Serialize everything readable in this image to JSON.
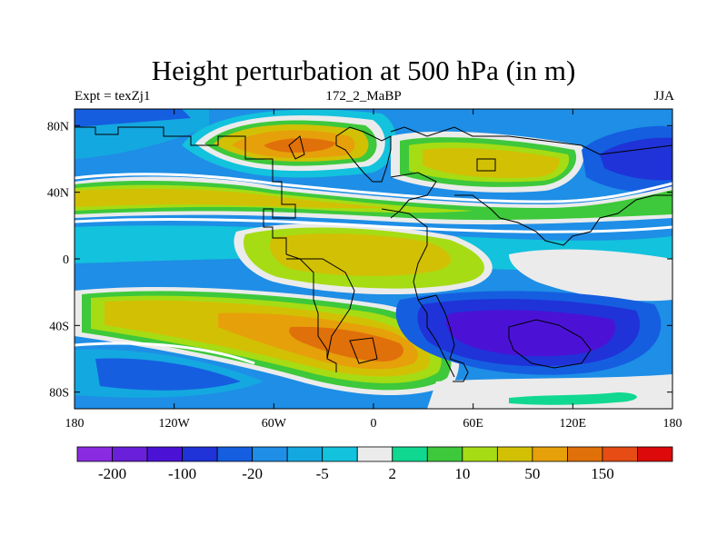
{
  "title": "Height perturbation at 500 hPa (in m)",
  "subtitle_left": "Expt = texZj1",
  "subtitle_center": "172_2_MaBP",
  "subtitle_right": "JJA",
  "x_ticks": [
    "180",
    "120W",
    "60W",
    "0",
    "60E",
    "120E",
    "180"
  ],
  "y_ticks": [
    "80N",
    "40N",
    "0",
    "40S",
    "80S"
  ],
  "colorbar": {
    "colors": [
      "#8a2be2",
      "#6a1fd8",
      "#4b12d6",
      "#1f33d8",
      "#155ee0",
      "#1e8ee6",
      "#14a8e0",
      "#13c2dc",
      "#ebebeb",
      "#10d891",
      "#3ec83b",
      "#a6dc14",
      "#d2c005",
      "#e6a00a",
      "#e0700a",
      "#e64c14",
      "#dc0a0a"
    ],
    "labels": [
      "-200",
      "-100",
      "-20",
      "-5",
      "2",
      "10",
      "50",
      "150"
    ]
  },
  "map_colors": {
    "ocean_base": "#1e8ee6",
    "land_outline": "#000000"
  }
}
